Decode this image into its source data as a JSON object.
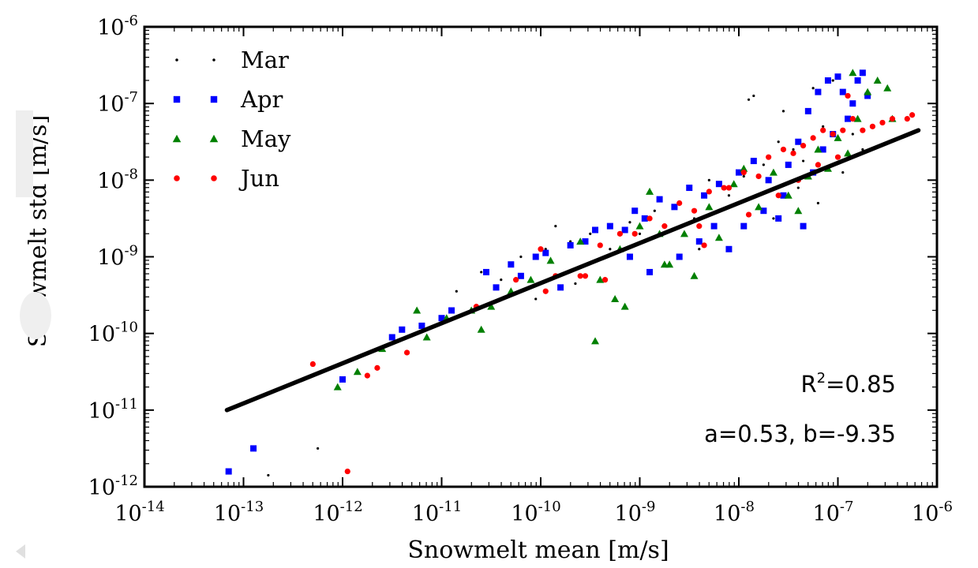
{
  "chart_data": {
    "type": "scatter",
    "xlabel": "Snowmelt mean [m/s]",
    "ylabel": "Snowmelt std [m/s]",
    "xscale": "log",
    "yscale": "log",
    "xlim": [
      1e-14,
      1e-06
    ],
    "ylim": [
      1e-12,
      1e-06
    ],
    "x_ticks": [
      {
        "base": "10",
        "exp": "-14",
        "value": 1e-14
      },
      {
        "base": "10",
        "exp": "-13",
        "value": 1e-13
      },
      {
        "base": "10",
        "exp": "-12",
        "value": 1e-12
      },
      {
        "base": "10",
        "exp": "-11",
        "value": 1e-11
      },
      {
        "base": "10",
        "exp": "-10",
        "value": 1e-10
      },
      {
        "base": "10",
        "exp": "-9",
        "value": 1e-09
      },
      {
        "base": "10",
        "exp": "-8",
        "value": 1e-08
      },
      {
        "base": "10",
        "exp": "-7",
        "value": 1e-07
      },
      {
        "base": "10",
        "exp": "-6",
        "value": 1e-06
      }
    ],
    "y_ticks": [
      {
        "base": "10",
        "exp": "-12",
        "value": 1e-12
      },
      {
        "base": "10",
        "exp": "-11",
        "value": 1e-11
      },
      {
        "base": "10",
        "exp": "-10",
        "value": 1e-10
      },
      {
        "base": "10",
        "exp": "-9",
        "value": 1e-09
      },
      {
        "base": "10",
        "exp": "-8",
        "value": 1e-08
      },
      {
        "base": "10",
        "exp": "-7",
        "value": 1e-07
      },
      {
        "base": "10",
        "exp": "-6",
        "value": 1e-06
      }
    ],
    "grid": false,
    "legend_position": "top-left",
    "series": [
      {
        "name": "Mar",
        "color": "#000000",
        "marker": "dot",
        "points": [
          [
            -12.75,
            -11.85
          ],
          [
            -12.25,
            -11.5
          ],
          [
            -10.85,
            -9.45
          ],
          [
            -10.6,
            -9.2
          ],
          [
            -10.4,
            -9.3
          ],
          [
            -10.2,
            -9.0
          ],
          [
            -9.95,
            -8.9
          ],
          [
            -9.85,
            -8.6
          ],
          [
            -9.7,
            -8.8
          ],
          [
            -9.5,
            -8.7
          ],
          [
            -9.3,
            -8.9
          ],
          [
            -9.1,
            -8.55
          ],
          [
            -9.0,
            -8.7
          ],
          [
            -8.85,
            -8.4
          ],
          [
            -8.6,
            -8.3
          ],
          [
            -8.45,
            -8.5
          ],
          [
            -8.3,
            -8.0
          ],
          [
            -8.1,
            -8.2
          ],
          [
            -7.95,
            -7.95
          ],
          [
            -7.9,
            -6.95
          ],
          [
            -7.85,
            -6.9
          ],
          [
            -7.75,
            -7.8
          ],
          [
            -7.6,
            -7.5
          ],
          [
            -7.55,
            -7.1
          ],
          [
            -7.45,
            -7.6
          ],
          [
            -7.35,
            -7.75
          ],
          [
            -7.25,
            -6.8
          ],
          [
            -7.15,
            -7.3
          ],
          [
            -7.05,
            -6.7
          ],
          [
            -6.95,
            -7.9
          ],
          [
            -6.85,
            -7.4
          ],
          [
            -6.75,
            -7.6
          ],
          [
            -7.65,
            -8.5
          ],
          [
            -7.4,
            -8.1
          ],
          [
            -7.2,
            -8.3
          ],
          [
            -8.4,
            -8.9
          ],
          [
            -9.65,
            -9.35
          ],
          [
            -10.05,
            -9.55
          ]
        ]
      },
      {
        "name": "Apr",
        "color": "#0000ff",
        "marker": "square",
        "points": [
          [
            -13.15,
            -11.8
          ],
          [
            -12.9,
            -11.5
          ],
          [
            -12.0,
            -10.6
          ],
          [
            -11.5,
            -10.05
          ],
          [
            -11.4,
            -9.95
          ],
          [
            -11.2,
            -9.9
          ],
          [
            -11.0,
            -9.8
          ],
          [
            -10.9,
            -9.7
          ],
          [
            -10.55,
            -9.2
          ],
          [
            -10.45,
            -9.4
          ],
          [
            -10.3,
            -9.1
          ],
          [
            -10.2,
            -9.25
          ],
          [
            -10.05,
            -9.0
          ],
          [
            -9.95,
            -8.95
          ],
          [
            -9.7,
            -8.85
          ],
          [
            -9.55,
            -8.8
          ],
          [
            -9.45,
            -8.65
          ],
          [
            -9.3,
            -8.6
          ],
          [
            -9.15,
            -8.65
          ],
          [
            -9.05,
            -8.4
          ],
          [
            -8.95,
            -8.5
          ],
          [
            -8.8,
            -8.25
          ],
          [
            -8.65,
            -8.35
          ],
          [
            -8.5,
            -8.1
          ],
          [
            -8.35,
            -8.2
          ],
          [
            -8.2,
            -8.05
          ],
          [
            -8.0,
            -7.9
          ],
          [
            -7.85,
            -7.75
          ],
          [
            -7.7,
            -8.0
          ],
          [
            -7.5,
            -7.8
          ],
          [
            -7.4,
            -7.5
          ],
          [
            -7.3,
            -7.1
          ],
          [
            -7.2,
            -6.85
          ],
          [
            -7.1,
            -6.7
          ],
          [
            -7.0,
            -6.65
          ],
          [
            -6.95,
            -6.85
          ],
          [
            -6.9,
            -7.2
          ],
          [
            -6.8,
            -6.7
          ],
          [
            -6.75,
            -6.6
          ],
          [
            -6.7,
            -6.9
          ],
          [
            -7.15,
            -7.6
          ],
          [
            -7.05,
            -7.4
          ],
          [
            -6.85,
            -7.0
          ],
          [
            -7.95,
            -8.6
          ],
          [
            -7.75,
            -8.4
          ],
          [
            -7.6,
            -8.5
          ],
          [
            -8.4,
            -8.8
          ],
          [
            -8.1,
            -8.9
          ],
          [
            -8.9,
            -9.2
          ],
          [
            -9.1,
            -9.0
          ],
          [
            -9.8,
            -9.4
          ],
          [
            -7.55,
            -8.2
          ],
          [
            -7.35,
            -8.6
          ],
          [
            -8.25,
            -8.6
          ],
          [
            -8.6,
            -9.0
          ],
          [
            -7.25,
            -7.9
          ]
        ]
      },
      {
        "name": "May",
        "color": "#008000",
        "marker": "triangle",
        "points": [
          [
            -12.05,
            -10.7
          ],
          [
            -11.85,
            -10.5
          ],
          [
            -11.6,
            -10.2
          ],
          [
            -11.15,
            -10.05
          ],
          [
            -10.95,
            -9.8
          ],
          [
            -10.7,
            -9.7
          ],
          [
            -10.5,
            -9.65
          ],
          [
            -10.3,
            -9.45
          ],
          [
            -10.1,
            -9.3
          ],
          [
            -9.9,
            -9.05
          ],
          [
            -9.6,
            -8.8
          ],
          [
            -9.4,
            -9.3
          ],
          [
            -9.25,
            -9.55
          ],
          [
            -9.15,
            -9.65
          ],
          [
            -9.0,
            -8.6
          ],
          [
            -8.9,
            -8.15
          ],
          [
            -8.8,
            -8.7
          ],
          [
            -8.7,
            -9.1
          ],
          [
            -8.55,
            -8.7
          ],
          [
            -8.45,
            -9.25
          ],
          [
            -8.3,
            -8.35
          ],
          [
            -8.2,
            -8.75
          ],
          [
            -8.05,
            -8.05
          ],
          [
            -7.95,
            -7.85
          ],
          [
            -7.8,
            -8.35
          ],
          [
            -7.65,
            -7.9
          ],
          [
            -7.5,
            -8.2
          ],
          [
            -7.4,
            -8.4
          ],
          [
            -7.3,
            -7.95
          ],
          [
            -7.2,
            -7.6
          ],
          [
            -7.1,
            -7.85
          ],
          [
            -7.0,
            -7.45
          ],
          [
            -6.9,
            -7.65
          ],
          [
            -6.8,
            -7.2
          ],
          [
            -6.7,
            -6.85
          ],
          [
            -6.6,
            -6.7
          ],
          [
            -6.5,
            -6.8
          ],
          [
            -6.45,
            -7.2
          ],
          [
            -6.85,
            -6.6
          ],
          [
            -10.6,
            -9.95
          ],
          [
            -9.45,
            -10.1
          ],
          [
            -9.2,
            -8.9
          ],
          [
            -8.75,
            -9.1
          ],
          [
            -11.25,
            -9.7
          ]
        ]
      },
      {
        "name": "Jun",
        "color": "#ff0000",
        "marker": "circle",
        "points": [
          [
            -12.3,
            -10.4
          ],
          [
            -11.95,
            -11.8
          ],
          [
            -11.65,
            -10.45
          ],
          [
            -11.35,
            -10.25
          ],
          [
            -10.65,
            -9.65
          ],
          [
            -10.25,
            -9.3
          ],
          [
            -10.0,
            -8.9
          ],
          [
            -9.85,
            -9.25
          ],
          [
            -9.6,
            -9.25
          ],
          [
            -9.4,
            -8.85
          ],
          [
            -9.2,
            -8.7
          ],
          [
            -9.05,
            -8.7
          ],
          [
            -8.9,
            -8.5
          ],
          [
            -8.75,
            -8.6
          ],
          [
            -8.6,
            -8.3
          ],
          [
            -8.45,
            -8.4
          ],
          [
            -8.3,
            -8.15
          ],
          [
            -8.1,
            -8.1
          ],
          [
            -7.95,
            -7.9
          ],
          [
            -7.8,
            -7.95
          ],
          [
            -7.7,
            -7.7
          ],
          [
            -7.55,
            -7.6
          ],
          [
            -7.45,
            -7.65
          ],
          [
            -7.35,
            -7.55
          ],
          [
            -7.25,
            -7.45
          ],
          [
            -7.15,
            -7.35
          ],
          [
            -7.05,
            -7.4
          ],
          [
            -6.95,
            -7.35
          ],
          [
            -6.85,
            -7.2
          ],
          [
            -6.75,
            -7.35
          ],
          [
            -6.65,
            -7.3
          ],
          [
            -6.55,
            -7.25
          ],
          [
            -6.45,
            -7.2
          ],
          [
            -6.3,
            -7.2
          ],
          [
            -6.25,
            -7.15
          ],
          [
            -7.9,
            -8.45
          ],
          [
            -7.6,
            -8.2
          ],
          [
            -7.4,
            -8.0
          ],
          [
            -7.2,
            -7.8
          ],
          [
            -7.0,
            -7.7
          ],
          [
            -6.9,
            -6.9
          ],
          [
            -8.15,
            -8.1
          ],
          [
            -8.4,
            -8.6
          ],
          [
            -9.35,
            -9.3
          ],
          [
            -9.55,
            -9.25
          ],
          [
            -8.35,
            -8.85
          ],
          [
            -9.95,
            -9.45
          ],
          [
            -11.75,
            -10.55
          ]
        ]
      }
    ],
    "fit_line": {
      "slope_a": 0.53,
      "intercept_b": -9.35,
      "x_range": [
        6.8e-14,
        6.5e-07
      ],
      "color": "#000000"
    },
    "annotations": {
      "r2_base": "R",
      "r2_sup": "2",
      "r2_value": "=0.85",
      "params": "a=0.53, b=-9.35"
    }
  }
}
